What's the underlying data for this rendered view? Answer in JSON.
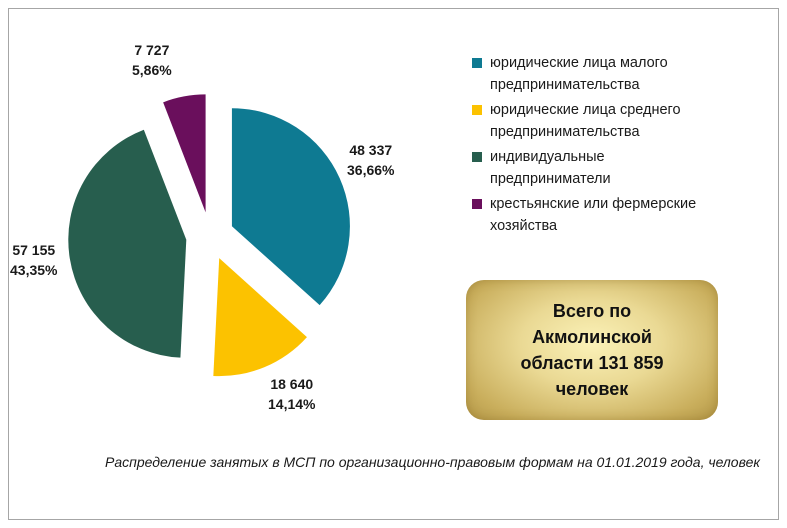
{
  "chart_data": {
    "type": "pie",
    "categories": [
      "юридические лица малого предпринимательства",
      "юридические лица среднего предпринимательства",
      "индивидуальные предприниматели",
      "крестьянские или фермерские хозяйства"
    ],
    "values": [
      48337,
      18640,
      57155,
      7727
    ],
    "value_labels": [
      "48 337",
      "18 640",
      "57 155",
      "7 727"
    ],
    "percent_labels": [
      "36,66%",
      "14,14%",
      "43,35%",
      "5,86%"
    ],
    "colors": [
      "#0e7a92",
      "#fcc200",
      "#275e4e",
      "#6a0f5c"
    ],
    "exploded": true,
    "legend_position": "right"
  },
  "legend": {
    "items": [
      {
        "label": "юридические лица малого предпринимательства",
        "color": "#0e7a92"
      },
      {
        "label": "юридические лица среднего предпринимательства",
        "color": "#fcc200"
      },
      {
        "label": "индивидуальные предприниматели",
        "color": "#275e4e"
      },
      {
        "label": "крестьянские или фермерские хозяйства",
        "color": "#6a0f5c"
      }
    ]
  },
  "total_box": {
    "text": "Всего по Акмолинской области 131 859 человек"
  },
  "caption": "Распределение занятых в МСП по организационно-правовым  формам на 01.01.2019 года, человек"
}
